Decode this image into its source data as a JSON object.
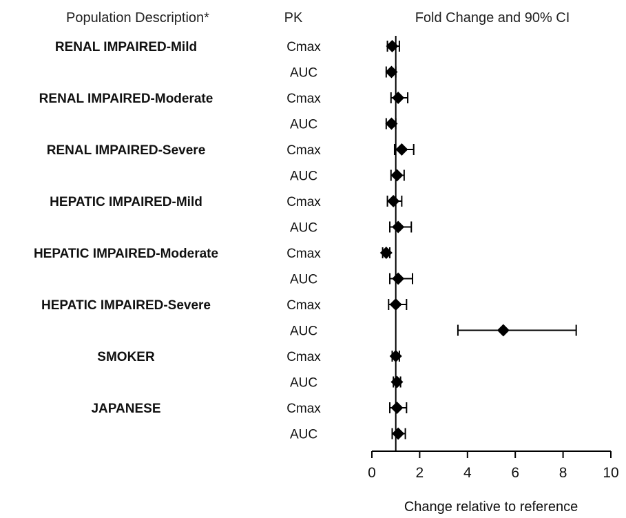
{
  "headers": {
    "population": "Population Description*",
    "pk": "PK",
    "effect": "Fold Change and 90% CI"
  },
  "chart_data": {
    "type": "forest",
    "xlabel": "Change relative to reference",
    "xlim": [
      0,
      10
    ],
    "xticks": [
      0,
      2,
      4,
      6,
      8,
      10
    ],
    "reference_line": 1,
    "groups": [
      {
        "population": "RENAL IMPAIRED-Mild",
        "rows": [
          {
            "pk": "Cmax",
            "estimate": 0.85,
            "ci": [
              0.65,
              1.15
            ]
          },
          {
            "pk": "AUC",
            "estimate": 0.82,
            "ci": [
              0.6,
              1.0
            ]
          }
        ]
      },
      {
        "population": "RENAL IMPAIRED-Moderate",
        "rows": [
          {
            "pk": "Cmax",
            "estimate": 1.1,
            "ci": [
              0.8,
              1.5
            ]
          },
          {
            "pk": "AUC",
            "estimate": 0.82,
            "ci": [
              0.6,
              1.0
            ]
          }
        ]
      },
      {
        "population": "RENAL IMPAIRED-Severe",
        "rows": [
          {
            "pk": "Cmax",
            "estimate": 1.25,
            "ci": [
              0.95,
              1.75
            ]
          },
          {
            "pk": "AUC",
            "estimate": 1.05,
            "ci": [
              0.8,
              1.35
            ]
          }
        ]
      },
      {
        "population": "HEPATIC IMPAIRED-Mild",
        "rows": [
          {
            "pk": "Cmax",
            "estimate": 0.9,
            "ci": [
              0.65,
              1.25
            ]
          },
          {
            "pk": "AUC",
            "estimate": 1.1,
            "ci": [
              0.75,
              1.65
            ]
          }
        ]
      },
      {
        "population": "HEPATIC IMPAIRED-Moderate",
        "rows": [
          {
            "pk": "Cmax",
            "estimate": 0.6,
            "ci": [
              0.45,
              0.75
            ]
          },
          {
            "pk": "AUC",
            "estimate": 1.1,
            "ci": [
              0.75,
              1.7
            ]
          }
        ]
      },
      {
        "population": "HEPATIC IMPAIRED-Severe",
        "rows": [
          {
            "pk": "Cmax",
            "estimate": 1.0,
            "ci": [
              0.7,
              1.45
            ]
          },
          {
            "pk": "AUC",
            "estimate": 5.5,
            "ci": [
              3.6,
              8.55
            ]
          }
        ]
      },
      {
        "population": "SMOKER",
        "rows": [
          {
            "pk": "Cmax",
            "estimate": 1.0,
            "ci": [
              0.85,
              1.15
            ]
          },
          {
            "pk": "AUC",
            "estimate": 1.05,
            "ci": [
              0.9,
              1.2
            ]
          }
        ]
      },
      {
        "population": "JAPANESE",
        "rows": [
          {
            "pk": "Cmax",
            "estimate": 1.05,
            "ci": [
              0.75,
              1.45
            ]
          },
          {
            "pk": "AUC",
            "estimate": 1.1,
            "ci": [
              0.85,
              1.4
            ]
          }
        ]
      }
    ]
  }
}
